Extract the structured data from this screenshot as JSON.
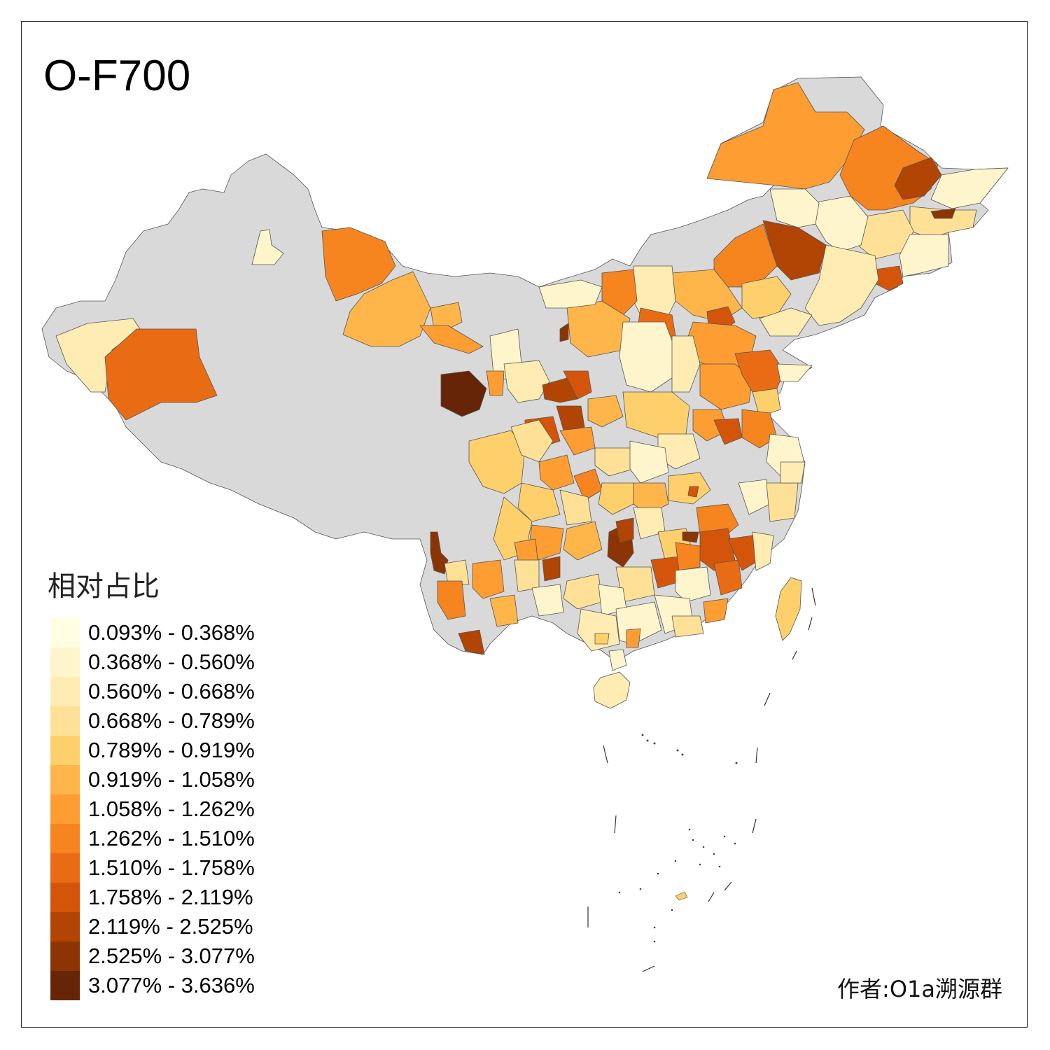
{
  "title": "O-F700",
  "legend": {
    "title": "相对占比",
    "items": [
      {
        "label": "0.093% - 0.368%",
        "color": "#fffee3"
      },
      {
        "label": "0.368% - 0.560%",
        "color": "#fff5cc"
      },
      {
        "label": "0.560% - 0.668%",
        "color": "#feecb3"
      },
      {
        "label": "0.668% - 0.789%",
        "color": "#fee196"
      },
      {
        "label": "0.789% - 0.919%",
        "color": "#fed06c"
      },
      {
        "label": "0.919% - 1.058%",
        "color": "#feb54a"
      },
      {
        "label": "1.058% - 1.262%",
        "color": "#fd9d32"
      },
      {
        "label": "1.262% - 1.510%",
        "color": "#f6841f"
      },
      {
        "label": "1.510% - 1.758%",
        "color": "#e96c14"
      },
      {
        "label": "1.758% - 2.119%",
        "color": "#d4550a"
      },
      {
        "label": "2.119% - 2.525%",
        "color": "#b24404"
      },
      {
        "label": "2.525% - 3.077%",
        "color": "#8c3404"
      },
      {
        "label": "3.077% - 3.636%",
        "color": "#662506"
      }
    ],
    "no_data_color": "#d9d9d9"
  },
  "author": "作者:O1a溯源群"
}
